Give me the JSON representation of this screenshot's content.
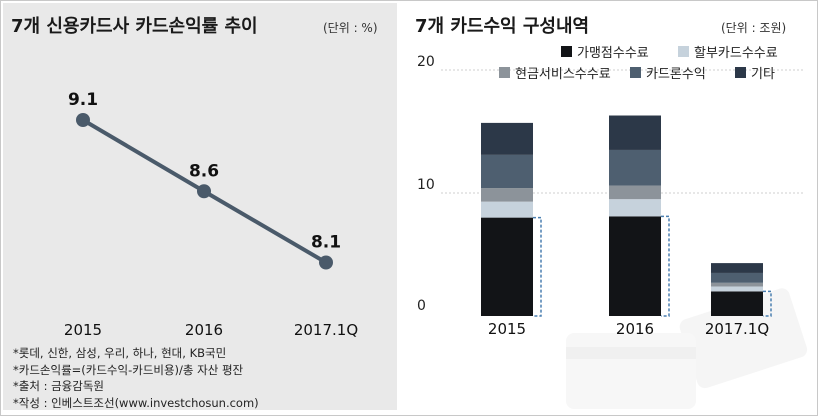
{
  "left_panel": {
    "title": "7개 신용카드사 카드손익률 추이",
    "unit": "(단위 : %)",
    "notes": [
      "*롯데, 신한, 삼성, 우리, 하나, 현대, KB국민",
      "*카드손익률=(카드수익-카드비용)/총 자산 평잔",
      "*출처 : 금융감독원",
      "*작성 : 인베스트조선(www.investchosun.com)"
    ]
  },
  "right_panel": {
    "title": "7개 카드수익 구성내역",
    "unit": "(단위 : 조원)"
  },
  "colors": {
    "line": "#4a5a6a",
    "s1": "#121417",
    "s2": "#c6d2dc",
    "s3": "#8c939a",
    "s4": "#4e5f70",
    "s5": "#2c3848",
    "dashed": "#4a7fb0"
  },
  "chart_data": [
    {
      "type": "line",
      "title": "7개 신용카드사 카드손익률 추이",
      "categories": [
        "2015",
        "2016",
        "2017.1Q"
      ],
      "values": [
        9.1,
        8.6,
        8.1
      ],
      "data_labels": [
        "9.1",
        "8.6",
        "8.1"
      ],
      "ylabel": "%",
      "ylim": [
        7.5,
        9.5
      ],
      "grid": false
    },
    {
      "type": "bar",
      "stacked": true,
      "title": "7개 카드수익 구성내역",
      "categories": [
        "2015",
        "2016",
        "2017.1Q"
      ],
      "ylim": [
        0,
        20
      ],
      "yticks": [
        "0",
        "10",
        "20"
      ],
      "grid": true,
      "legend_position": "top-right",
      "series": [
        {
          "name": "가맹점수수료",
          "values": [
            8.0,
            8.1,
            2.0
          ]
        },
        {
          "name": "할부카드수수료",
          "values": [
            1.3,
            1.4,
            0.4
          ]
        },
        {
          "name": "현금서비스수수료",
          "values": [
            1.1,
            1.1,
            0.3
          ]
        },
        {
          "name": "카드론수익",
          "values": [
            2.7,
            2.9,
            0.8
          ]
        },
        {
          "name": "기타",
          "values": [
            2.6,
            2.8,
            0.8
          ]
        }
      ]
    }
  ]
}
